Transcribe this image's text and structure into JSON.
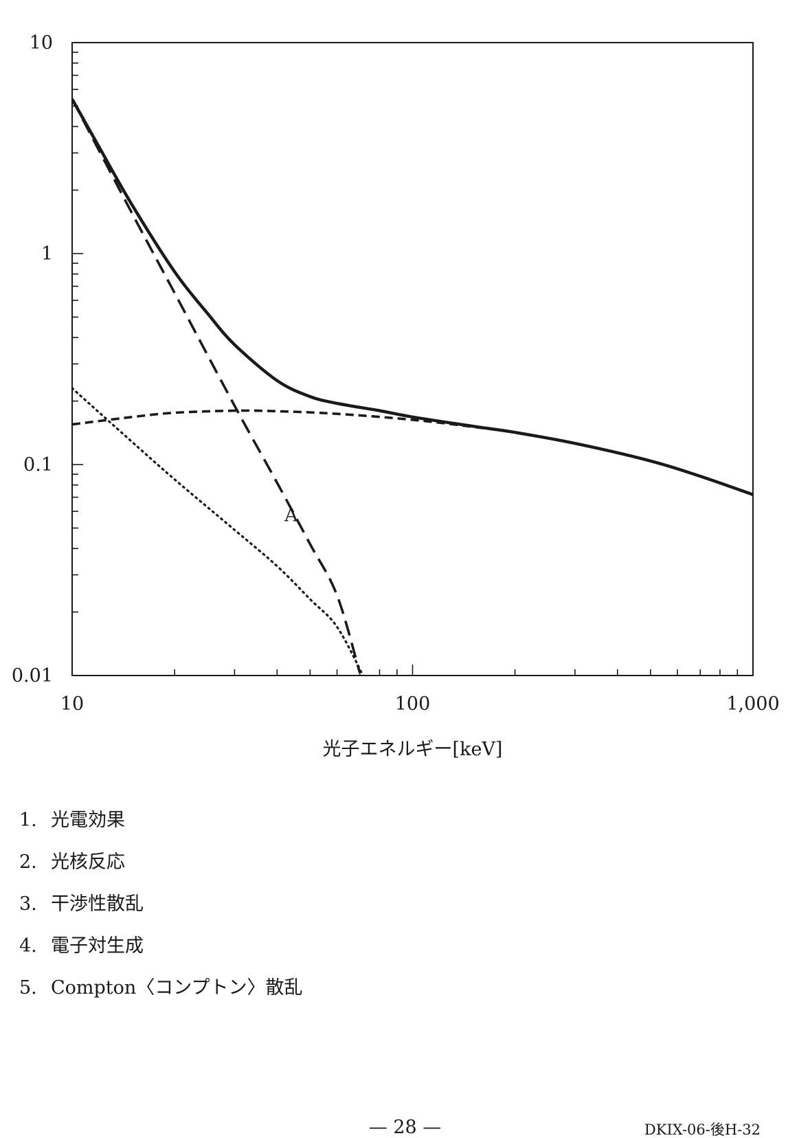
{
  "chart_data": {
    "type": "line",
    "xscale": "log",
    "yscale": "log",
    "xlim": [
      10,
      1000
    ],
    "ylim": [
      0.01,
      10
    ],
    "xticks": [
      "10",
      "100",
      "1,000"
    ],
    "yticks": [
      "10",
      "1",
      "0.1",
      "0.01"
    ],
    "xlabel": "光子エネルギー[keV]",
    "ylabel": "",
    "grid": false,
    "annotations": [
      {
        "text": "A",
        "x": 44,
        "y": 0.058
      }
    ],
    "series": [
      {
        "style": "solid",
        "x": [
          10,
          12,
          15,
          20,
          25,
          30,
          40,
          50,
          60,
          80,
          100,
          150,
          200,
          300,
          500,
          700,
          1000
        ],
        "y": [
          5.4,
          3.2,
          1.7,
          0.82,
          0.52,
          0.37,
          0.25,
          0.21,
          0.195,
          0.18,
          0.168,
          0.152,
          0.142,
          0.126,
          0.104,
          0.088,
          0.072
        ]
      },
      {
        "style": "dashed",
        "x": [
          10,
          15,
          20,
          30,
          40,
          50,
          60,
          70
        ],
        "y": [
          5.4,
          1.55,
          0.65,
          0.19,
          0.082,
          0.042,
          0.024,
          0.0103
        ]
      },
      {
        "style": "short-dashed",
        "x": [
          10,
          15,
          20,
          30,
          40,
          60,
          100,
          150,
          200
        ],
        "y": [
          0.155,
          0.168,
          0.176,
          0.18,
          0.179,
          0.174,
          0.163,
          0.151,
          0.142
        ]
      },
      {
        "style": "dotted",
        "x": [
          10,
          15,
          20,
          30,
          40,
          50,
          60,
          72
        ],
        "y": [
          0.23,
          0.128,
          0.085,
          0.049,
          0.033,
          0.023,
          0.017,
          0.0098
        ]
      }
    ]
  },
  "options": [
    {
      "num": "1.",
      "text": "光電効果"
    },
    {
      "num": "2.",
      "text": "光核反応"
    },
    {
      "num": "3.",
      "text": "干渉性散乱"
    },
    {
      "num": "4.",
      "text": "電子対生成"
    },
    {
      "num": "5.",
      "text": "Compton〈コンプトン〉散乱"
    }
  ],
  "footer": {
    "page": "— 28 —",
    "code": "DKIX-06-後H-32"
  }
}
